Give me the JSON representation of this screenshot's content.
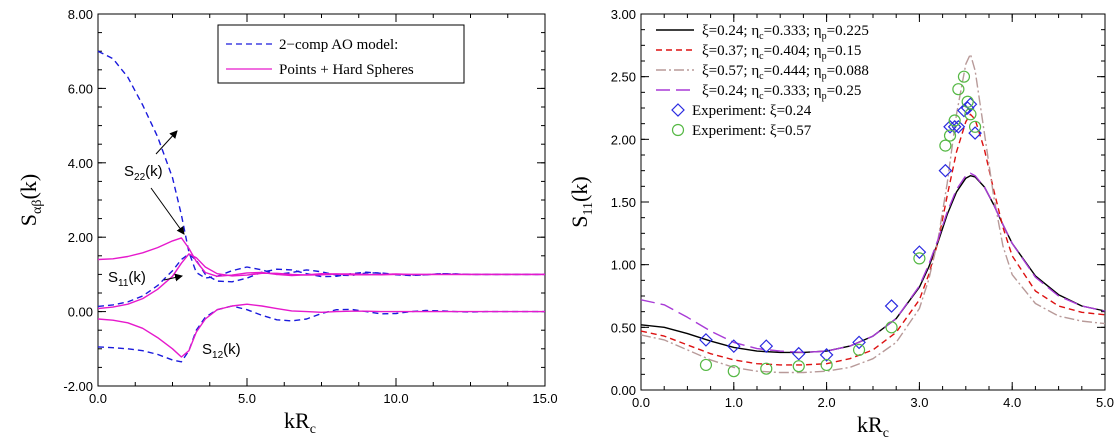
{
  "chart_data": [
    {
      "type": "line",
      "xlabel": "kR",
      "xlabel_sub": "c",
      "ylabel": "S",
      "ylabel_sub": "αβ",
      "ylabel_tail": "(k)",
      "xlim": [
        0,
        15
      ],
      "ylim": [
        -2,
        8
      ],
      "x_ticks": [
        "0.0",
        "5.0",
        "10.0",
        "15.0"
      ],
      "y_ticks": [
        "-2.00",
        "0.00",
        "2.00",
        "4.00",
        "6.00",
        "8.00"
      ],
      "grid": false,
      "legend_position": "top-right",
      "legend": [
        "2−comp AO model:",
        "Points + Hard Spheres"
      ],
      "annotations": [
        {
          "main": "S",
          "sub": "22",
          "tail": "(k)"
        },
        {
          "main": "S",
          "sub": "11",
          "tail": "(k)"
        },
        {
          "main": "S",
          "sub": "12",
          "tail": "(k)"
        }
      ],
      "series": [
        {
          "name": "2−comp AO model:",
          "curve": "S22",
          "style": "dashed",
          "color": "#1a1adc",
          "x": [
            0,
            0.5,
            1,
            1.5,
            2,
            2.5,
            2.8,
            3.05,
            3.3,
            3.6,
            4,
            4.5,
            5,
            5.5,
            6,
            6.5,
            7,
            7.5,
            8,
            8.5,
            9,
            9.5,
            10,
            10.5,
            11,
            11.5,
            12,
            12.5,
            13,
            13.5,
            14,
            14.5,
            15
          ],
          "y": [
            7,
            6.8,
            6.3,
            5.55,
            4.7,
            3.6,
            2.6,
            1.6,
            1.05,
            0.9,
            0.95,
            1.1,
            1.2,
            1.12,
            1.0,
            1.05,
            1.12,
            1.07,
            0.98,
            0.97,
            1.04,
            1.04,
            1.0,
            0.98,
            0.99,
            1.02,
            1.01,
            1.0,
            1.0,
            1.0,
            1.0,
            1.0,
            1.0
          ]
        },
        {
          "name": "2−comp AO model:",
          "curve": "S11",
          "style": "dashed",
          "color": "#1a1adc",
          "x": [
            0,
            0.5,
            1,
            1.5,
            2,
            2.5,
            2.8,
            3.05,
            3.3,
            3.6,
            4,
            4.5,
            5,
            5.5,
            6,
            6.5,
            7,
            7.5,
            8,
            8.5,
            9,
            9.5,
            10,
            10.5,
            11,
            11.5,
            12,
            12.5,
            13,
            13.5,
            14,
            14.5,
            15
          ],
          "y": [
            0.14,
            0.18,
            0.26,
            0.42,
            0.7,
            1.1,
            1.4,
            1.55,
            1.38,
            1.0,
            0.82,
            0.8,
            0.9,
            1.06,
            1.14,
            1.12,
            1.02,
            0.94,
            0.95,
            1.02,
            1.06,
            1.03,
            0.99,
            0.97,
            0.99,
            1.02,
            1.01,
            1.0,
            1.0,
            1.0,
            1.0,
            1.0,
            1.0
          ]
        },
        {
          "name": "2−comp AO model:",
          "curve": "S12",
          "style": "dashed",
          "color": "#1a1adc",
          "x": [
            0,
            0.5,
            1,
            1.5,
            2,
            2.5,
            2.8,
            3.05,
            3.3,
            3.6,
            4,
            4.5,
            5,
            5.5,
            6,
            6.5,
            7,
            7.5,
            8,
            8.5,
            9,
            9.5,
            10,
            10.5,
            11,
            11.5,
            12,
            12.5,
            13,
            13.5,
            14,
            14.5,
            15
          ],
          "y": [
            -0.95,
            -0.97,
            -1.0,
            -1.05,
            -1.15,
            -1.3,
            -1.35,
            -1.05,
            -0.5,
            -0.15,
            0.05,
            0.15,
            0.05,
            -0.1,
            -0.22,
            -0.25,
            -0.2,
            -0.05,
            0.05,
            0.06,
            0.0,
            -0.06,
            -0.05,
            0.0,
            0.03,
            0.02,
            0.0,
            -0.01,
            0.0,
            0.0,
            0.0,
            0.0,
            0.0
          ]
        },
        {
          "name": "Points + Hard Spheres",
          "curve": "S22",
          "style": "solid",
          "color": "#e619cc",
          "x": [
            0,
            0.5,
            1,
            1.5,
            2,
            2.5,
            2.8,
            3.05,
            3.3,
            3.6,
            4,
            4.5,
            5,
            5.5,
            6,
            6.5,
            7,
            7.5,
            8,
            8.5,
            9,
            9.5,
            10,
            10.5,
            11,
            11.5,
            12,
            12.5,
            13,
            13.5,
            14,
            14.5,
            15
          ],
          "y": [
            1.4,
            1.42,
            1.48,
            1.58,
            1.72,
            1.9,
            1.98,
            1.7,
            1.35,
            1.05,
            0.95,
            0.98,
            1.04,
            1.05,
            1.0,
            0.97,
            0.99,
            1.02,
            1.01,
            0.99,
            0.99,
            1.0,
            1.01,
            1.0,
            1.0,
            1.0,
            1.0,
            1.0,
            1.0,
            1.0,
            1.0,
            1.0,
            1.0
          ]
        },
        {
          "name": "Points + Hard Spheres",
          "curve": "S11",
          "style": "solid",
          "color": "#e619cc",
          "x": [
            0,
            0.5,
            1,
            1.5,
            2,
            2.5,
            2.8,
            3.05,
            3.3,
            3.6,
            4,
            4.5,
            5,
            5.5,
            6,
            6.5,
            7,
            7.5,
            8,
            8.5,
            9,
            9.5,
            10,
            10.5,
            11,
            11.5,
            12,
            12.5,
            13,
            13.5,
            14,
            14.5,
            15
          ],
          "y": [
            0.08,
            0.12,
            0.2,
            0.35,
            0.6,
            0.95,
            1.3,
            1.55,
            1.45,
            1.2,
            1.02,
            0.96,
            0.98,
            1.03,
            1.03,
            1.0,
            0.98,
            0.99,
            1.01,
            1.01,
            1.0,
            0.99,
            1.0,
            1.0,
            1.0,
            1.0,
            1.0,
            1.0,
            1.0,
            1.0,
            1.0,
            1.0,
            1.0
          ]
        },
        {
          "name": "Points + Hard Spheres",
          "curve": "S12",
          "style": "solid",
          "color": "#e619cc",
          "x": [
            0,
            0.5,
            1,
            1.5,
            2,
            2.5,
            2.8,
            3.05,
            3.3,
            3.6,
            4,
            4.5,
            5,
            5.5,
            6,
            6.5,
            7,
            7.5,
            8,
            8.5,
            9,
            9.5,
            10,
            10.5,
            11,
            11.5,
            12,
            12.5,
            13,
            13.5,
            14,
            14.5,
            15
          ],
          "y": [
            -0.2,
            -0.23,
            -0.3,
            -0.45,
            -0.7,
            -1.0,
            -1.22,
            -1.05,
            -0.55,
            -0.2,
            0.05,
            0.15,
            0.2,
            0.15,
            0.08,
            0.02,
            0.0,
            -0.02,
            0.0,
            0.01,
            0.01,
            0.0,
            0.0,
            0.0,
            0.0,
            0.0,
            0.0,
            0.0,
            0.0,
            0.0,
            0.0,
            0.0,
            0.0
          ]
        }
      ]
    },
    {
      "type": "line",
      "xlabel": "kR",
      "xlabel_sub": "c",
      "ylabel": "S",
      "ylabel_sub": "11",
      "ylabel_tail": "(k)",
      "xlim": [
        0,
        5
      ],
      "ylim": [
        0,
        3
      ],
      "x_ticks": [
        "0.0",
        "1.0",
        "2.0",
        "3.0",
        "4.0",
        "5.0"
      ],
      "y_ticks": [
        "0.00",
        "0.50",
        "1.00",
        "1.50",
        "2.00",
        "2.50",
        "3.00"
      ],
      "grid": false,
      "legend_position": "top-left",
      "legend": [
        {
          "parts": [
            [
              "ξ=0.24; η",
              ""
            ],
            [
              "c",
              "sub"
            ],
            [
              "=0.333; η",
              ""
            ],
            [
              "p",
              "sub"
            ],
            [
              "=0.225",
              ""
            ]
          ]
        },
        {
          "parts": [
            [
              "ξ=0.37; η",
              ""
            ],
            [
              "c",
              "sub"
            ],
            [
              "=0.404; η",
              ""
            ],
            [
              "p",
              "sub"
            ],
            [
              "=0.15",
              ""
            ]
          ]
        },
        {
          "parts": [
            [
              "ξ=0.57; η",
              ""
            ],
            [
              "c",
              "sub"
            ],
            [
              "=0.444; η",
              ""
            ],
            [
              "p",
              "sub"
            ],
            [
              "=0.088",
              ""
            ]
          ]
        },
        {
          "parts": [
            [
              "ξ=0.24; η",
              ""
            ],
            [
              "c",
              "sub"
            ],
            [
              "=0.333; η",
              ""
            ],
            [
              "p",
              "sub"
            ],
            [
              "=0.25",
              ""
            ]
          ]
        },
        {
          "parts": [
            [
              "Experiment: ξ=0.24",
              ""
            ]
          ]
        },
        {
          "parts": [
            [
              "Experiment: ξ=0.57",
              ""
            ]
          ]
        }
      ],
      "series": [
        {
          "name": "ξ=0.24; ηc=0.333; ηp=0.225",
          "style": "solid",
          "color": "#000000",
          "x": [
            0,
            0.25,
            0.5,
            0.75,
            1,
            1.25,
            1.5,
            1.75,
            2,
            2.25,
            2.5,
            2.75,
            3,
            3.1,
            3.2,
            3.3,
            3.4,
            3.5,
            3.55,
            3.6,
            3.7,
            3.8,
            3.9,
            4,
            4.25,
            4.5,
            4.75,
            5
          ],
          "y": [
            0.52,
            0.5,
            0.45,
            0.39,
            0.34,
            0.31,
            0.3,
            0.3,
            0.31,
            0.35,
            0.43,
            0.57,
            0.82,
            0.98,
            1.18,
            1.4,
            1.58,
            1.69,
            1.71,
            1.7,
            1.62,
            1.48,
            1.32,
            1.17,
            0.91,
            0.76,
            0.67,
            0.63
          ]
        },
        {
          "name": "ξ=0.37; ηc=0.404; ηp=0.15",
          "style": "dashed",
          "color": "#dd1111",
          "x": [
            0,
            0.25,
            0.5,
            0.75,
            1,
            1.25,
            1.5,
            1.75,
            2,
            2.25,
            2.5,
            2.75,
            3,
            3.1,
            3.2,
            3.3,
            3.4,
            3.5,
            3.55,
            3.6,
            3.7,
            3.8,
            3.9,
            4,
            4.25,
            4.5,
            4.75,
            5
          ],
          "y": [
            0.47,
            0.43,
            0.36,
            0.29,
            0.24,
            0.21,
            0.2,
            0.2,
            0.21,
            0.25,
            0.32,
            0.46,
            0.72,
            0.92,
            1.18,
            1.55,
            1.9,
            2.14,
            2.2,
            2.16,
            1.92,
            1.6,
            1.3,
            1.07,
            0.79,
            0.67,
            0.62,
            0.6
          ]
        },
        {
          "name": "ξ=0.57; ηc=0.444; ηp=0.088",
          "style": "dashdot",
          "color": "#b89a99",
          "x": [
            0,
            0.25,
            0.5,
            0.75,
            1,
            1.25,
            1.5,
            1.75,
            2,
            2.25,
            2.5,
            2.75,
            3,
            3.1,
            3.2,
            3.3,
            3.4,
            3.5,
            3.55,
            3.6,
            3.7,
            3.8,
            3.9,
            4,
            4.25,
            4.5,
            4.75,
            5
          ],
          "y": [
            0.44,
            0.4,
            0.32,
            0.24,
            0.18,
            0.15,
            0.14,
            0.14,
            0.15,
            0.18,
            0.25,
            0.38,
            0.65,
            0.88,
            1.2,
            1.65,
            2.2,
            2.6,
            2.68,
            2.55,
            2.05,
            1.55,
            1.15,
            0.92,
            0.69,
            0.59,
            0.55,
            0.53
          ]
        },
        {
          "name": "ξ=0.24; ηc=0.333; ηp=0.25",
          "style": "longdash",
          "color": "#a83ad6",
          "x": [
            0,
            0.25,
            0.5,
            0.75,
            1,
            1.25,
            1.5,
            1.75,
            2,
            2.25,
            2.5,
            2.75,
            3,
            3.1,
            3.2,
            3.3,
            3.4,
            3.5,
            3.55,
            3.6,
            3.7,
            3.8,
            3.9,
            4,
            4.25,
            4.5,
            4.75,
            5
          ],
          "y": [
            0.72,
            0.68,
            0.58,
            0.47,
            0.38,
            0.33,
            0.31,
            0.3,
            0.31,
            0.35,
            0.43,
            0.57,
            0.83,
            1.0,
            1.2,
            1.42,
            1.6,
            1.71,
            1.73,
            1.71,
            1.62,
            1.48,
            1.32,
            1.17,
            0.9,
            0.75,
            0.67,
            0.63
          ]
        },
        {
          "name": "Experiment: ξ=0.24",
          "style": "diamond",
          "color": "#2a2ae0",
          "x": [
            0.7,
            1.0,
            1.35,
            1.7,
            2.0,
            2.35,
            2.7,
            3.0,
            3.28,
            3.33,
            3.38,
            3.42,
            3.48,
            3.52,
            3.55,
            3.6
          ],
          "y": [
            0.4,
            0.35,
            0.35,
            0.29,
            0.28,
            0.38,
            0.67,
            1.1,
            1.75,
            2.1,
            2.1,
            2.1,
            2.23,
            2.25,
            2.28,
            2.05
          ]
        },
        {
          "name": "Experiment: ξ=0.57",
          "style": "circle",
          "color": "#55b844",
          "x": [
            0.7,
            1.0,
            1.35,
            1.7,
            2.0,
            2.35,
            2.7,
            3.0,
            3.28,
            3.33,
            3.38,
            3.42,
            3.48,
            3.52,
            3.55,
            3.6
          ],
          "y": [
            0.2,
            0.15,
            0.17,
            0.19,
            0.2,
            0.32,
            0.5,
            1.05,
            1.95,
            2.03,
            2.15,
            2.4,
            2.5,
            2.3,
            2.2,
            2.1
          ]
        }
      ]
    }
  ]
}
